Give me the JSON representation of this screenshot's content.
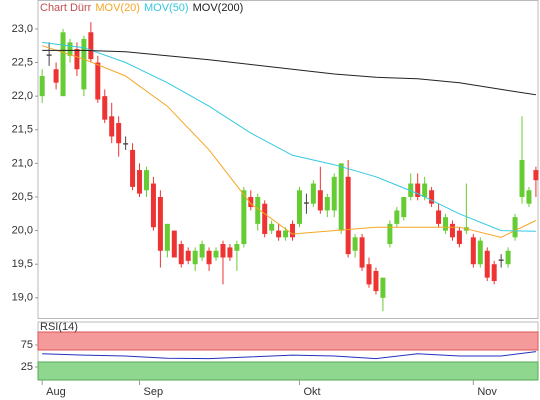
{
  "chart_data": [
    {
      "type": "candlestick",
      "ohlc": {
        "name": "Chart Dürr",
        "color": "#c05050",
        "up_color": "#66cc33",
        "down_color": "#ee3333",
        "open": [
          22.0,
          22.6,
          22.4,
          22.0,
          22.6,
          22.7,
          22.1,
          22.95,
          22.5,
          22.0,
          21.7,
          21.6,
          21.28,
          21.2,
          20.9,
          20.6,
          20.7,
          20.5,
          19.7,
          20.0,
          19.8,
          19.7,
          19.5,
          19.6,
          19.7,
          19.6,
          19.8,
          19.75,
          19.7,
          19.8,
          20.5,
          20.1,
          20.4,
          20.0,
          20.0,
          19.9,
          20.1,
          20.1,
          20.4,
          20.4,
          20.6,
          20.3,
          20.3,
          20.0,
          20.8,
          19.7,
          19.9,
          19.5,
          19.4,
          19.0,
          19.8,
          20.1,
          20.2,
          20.5,
          20.7,
          20.5,
          20.6,
          20.3,
          20.0,
          20.1,
          20.0,
          20.0,
          19.9,
          19.5,
          19.7,
          19.5,
          19.55,
          19.5,
          19.9,
          20.5,
          20.4,
          20.9
        ],
        "high": [
          22.4,
          22.8,
          22.5,
          23.0,
          22.85,
          22.8,
          22.9,
          23.1,
          22.6,
          22.1,
          21.9,
          21.7,
          21.4,
          21.3,
          21.0,
          20.95,
          20.8,
          20.6,
          20.1,
          20.0,
          19.85,
          19.75,
          19.75,
          19.85,
          19.75,
          19.75,
          19.85,
          19.8,
          19.85,
          20.65,
          20.6,
          20.55,
          20.45,
          20.15,
          20.1,
          20.05,
          20.15,
          20.65,
          20.55,
          20.75,
          20.95,
          20.55,
          20.85,
          21.0,
          21.05,
          19.95,
          19.95,
          19.6,
          19.45,
          19.3,
          20.15,
          20.35,
          20.5,
          20.85,
          20.85,
          20.8,
          20.65,
          20.4,
          20.25,
          20.15,
          20.05,
          20.7,
          19.95,
          19.9,
          19.75,
          19.55,
          19.65,
          19.75,
          20.25,
          21.7,
          20.65,
          20.95
        ],
        "low": [
          21.9,
          22.45,
          22.1,
          22.0,
          22.5,
          22.3,
          22.0,
          22.5,
          21.9,
          21.6,
          21.3,
          21.1,
          21.2,
          20.6,
          20.5,
          20.5,
          20.0,
          19.45,
          19.6,
          19.6,
          19.45,
          19.5,
          19.4,
          19.55,
          19.4,
          19.55,
          19.2,
          19.55,
          19.4,
          19.75,
          20.3,
          20.0,
          19.9,
          19.95,
          19.85,
          19.85,
          19.85,
          20.05,
          20.25,
          20.35,
          20.25,
          20.2,
          20.2,
          19.95,
          19.6,
          19.6,
          19.4,
          19.15,
          19.05,
          18.8,
          19.75,
          20.05,
          20.15,
          20.45,
          20.45,
          20.45,
          20.35,
          20.05,
          19.95,
          19.85,
          19.75,
          19.95,
          19.45,
          19.45,
          19.25,
          19.2,
          19.45,
          19.45,
          19.85,
          20.4,
          20.35,
          20.5
        ],
        "close": [
          22.3,
          22.62,
          22.2,
          22.95,
          22.8,
          22.4,
          22.85,
          22.55,
          21.95,
          21.65,
          21.4,
          21.3,
          21.3,
          20.65,
          20.55,
          20.9,
          20.05,
          19.7,
          20.1,
          19.6,
          19.5,
          19.55,
          19.7,
          19.8,
          19.5,
          19.7,
          19.6,
          19.6,
          19.8,
          20.6,
          20.35,
          20.5,
          19.95,
          20.1,
          19.9,
          20.0,
          19.9,
          20.6,
          20.42,
          20.7,
          20.3,
          20.5,
          20.8,
          21.0,
          19.65,
          19.9,
          19.45,
          19.2,
          19.1,
          19.3,
          20.1,
          20.3,
          20.5,
          20.7,
          20.5,
          20.7,
          20.4,
          20.1,
          20.2,
          19.9,
          19.8,
          20.05,
          19.5,
          19.85,
          19.3,
          19.25,
          19.57,
          19.7,
          20.2,
          21.05,
          20.6,
          20.75
        ]
      },
      "series": [
        {
          "name": "MOV(20)",
          "color": "#f5a623",
          "x": [
            0,
            6,
            12,
            18,
            24,
            30,
            36,
            42,
            48,
            54,
            60,
            66,
            71
          ],
          "values": [
            22.75,
            22.55,
            22.3,
            21.85,
            21.2,
            20.4,
            19.95,
            20.0,
            20.05,
            20.05,
            20.05,
            19.9,
            20.15
          ]
        },
        {
          "name": "MOV(50)",
          "color": "#33c9e0",
          "x": [
            0,
            6,
            12,
            18,
            24,
            30,
            36,
            42,
            48,
            54,
            60,
            66,
            71
          ],
          "values": [
            22.8,
            22.72,
            22.5,
            22.2,
            21.85,
            21.45,
            21.12,
            20.98,
            20.8,
            20.55,
            20.25,
            20.0,
            19.99
          ]
        },
        {
          "name": "MOV(200)",
          "color": "#222222",
          "x": [
            0,
            6,
            12,
            18,
            24,
            30,
            36,
            42,
            48,
            54,
            60,
            66,
            71
          ],
          "values": [
            22.68,
            22.68,
            22.66,
            22.6,
            22.54,
            22.47,
            22.4,
            22.33,
            22.28,
            22.26,
            22.2,
            22.1,
            22.02
          ]
        }
      ],
      "ylim": [
        18.7,
        23.43
      ],
      "yticks": [
        {
          "value": 19,
          "label": "19,0"
        },
        {
          "value": 19.5,
          "label": "19,5"
        },
        {
          "value": 20,
          "label": "20,0"
        },
        {
          "value": 20.5,
          "label": "20,5"
        },
        {
          "value": 21,
          "label": "21,0"
        },
        {
          "value": 21.5,
          "label": "21,5"
        },
        {
          "value": 22,
          "label": "22,0"
        },
        {
          "value": 22.5,
          "label": "22,5"
        },
        {
          "value": 23,
          "label": "23,0"
        }
      ],
      "xlim": [
        -0.6,
        71.3
      ],
      "xticks": [
        {
          "value": 0,
          "label": "Aug"
        },
        {
          "value": 14,
          "label": "Sep"
        },
        {
          "value": 37,
          "label": "Okt"
        },
        {
          "value": 62,
          "label": "Nov"
        }
      ]
    },
    {
      "type": "line",
      "title": "RSI(14)",
      "series": [
        {
          "color": "#2233bb",
          "x": [
            0,
            6,
            12,
            18,
            24,
            30,
            36,
            42,
            48,
            54,
            60,
            66,
            71
          ],
          "values": [
            55,
            52,
            50,
            45,
            44,
            48,
            52,
            50,
            44,
            55,
            50,
            50,
            60
          ]
        }
      ],
      "ylim": [
        0,
        100
      ],
      "yticks": [
        25,
        75
      ]
    }
  ]
}
